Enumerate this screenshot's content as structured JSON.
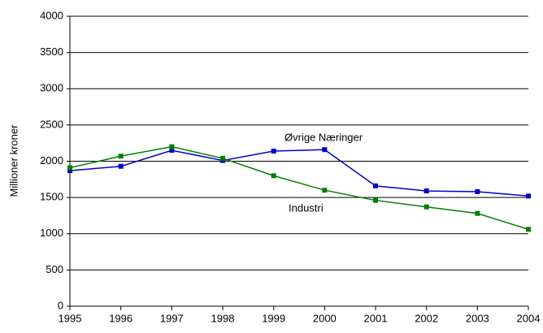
{
  "chart_data": {
    "type": "line",
    "y_label": "Millioner kroner",
    "x": [
      1995,
      1996,
      1997,
      1998,
      1999,
      2000,
      2001,
      2002,
      2003,
      2004
    ],
    "xlim": [
      1995,
      2004
    ],
    "xticks": [
      1995,
      1996,
      1997,
      1998,
      1999,
      2000,
      2001,
      2002,
      2003,
      2004
    ],
    "ylim": [
      0,
      4000
    ],
    "yticks": [
      0,
      500,
      1000,
      1500,
      2000,
      2500,
      3000,
      3500,
      4000
    ],
    "grid": true,
    "series": [
      {
        "name": "Øvrige Næringer",
        "color": "#0000cc",
        "values": [
          1870,
          1930,
          2150,
          2010,
          2140,
          2160,
          1660,
          1590,
          1580,
          1520
        ]
      },
      {
        "name": "Industri",
        "color": "#008000",
        "values": [
          1910,
          2070,
          2200,
          2040,
          1800,
          1600,
          1460,
          1370,
          1280,
          1060
        ]
      }
    ]
  }
}
